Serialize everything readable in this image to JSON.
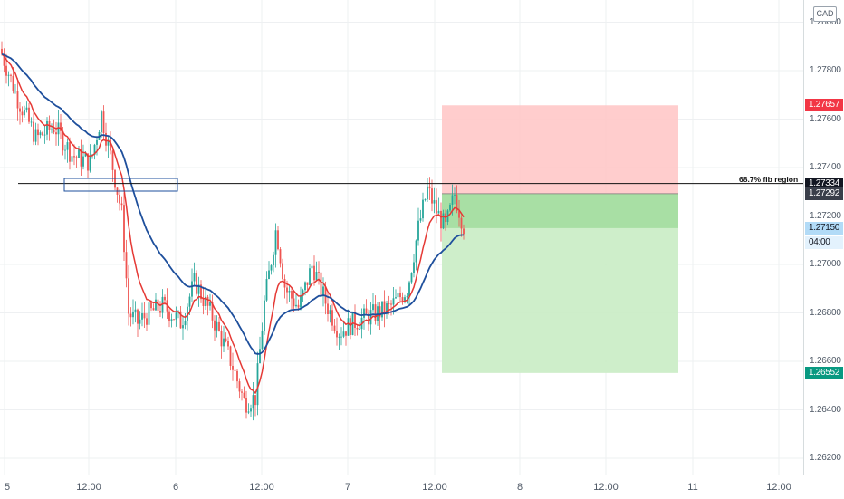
{
  "currency": "CAD",
  "annotation": {
    "fib_label": "68.7% fib region"
  },
  "price_axis": {
    "ticks": [
      "1.28000",
      "1.27800",
      "1.27600",
      "1.27400",
      "1.27200",
      "1.27000",
      "1.26800",
      "1.26600",
      "1.26400",
      "1.26200"
    ],
    "labels": {
      "stop": "1.27657",
      "fib_level": "1.27334",
      "entry": "1.27292",
      "current": "1.27150",
      "countdown": "04:00",
      "target": "1.26552"
    }
  },
  "time_axis": {
    "ticks": [
      "5",
      "12:00",
      "6",
      "12:00",
      "7",
      "12:00",
      "8",
      "12:00",
      "11",
      "12:00"
    ]
  },
  "colors": {
    "ema_fast": "#e53935",
    "ema_slow": "#1e4f9c",
    "stop_label_bg": "#f23645",
    "target_label_bg": "#089981",
    "current_label_bg": "#b2dbf7",
    "risk_fill": "#ffc8c8",
    "reward_fill": "#c9ecc4"
  },
  "chart_data": {
    "type": "line",
    "title": "",
    "xlabel": "",
    "ylabel": "",
    "x": [
      "5 00:00",
      "5 04:00",
      "5 08:00",
      "5 12:00",
      "5 16:00",
      "5 20:00",
      "6 00:00",
      "6 04:00",
      "6 08:00",
      "6 12:00",
      "6 16:00",
      "6 20:00",
      "7 00:00",
      "7 04:00",
      "7 08:00",
      "7 12:00",
      "7 14:00"
    ],
    "series": [
      {
        "values": [
          1.2787,
          1.2765,
          1.2754,
          1.275,
          1.2745,
          1.269,
          1.269,
          1.2694,
          1.2652,
          1.2712,
          1.2686,
          1.268,
          1.2683,
          1.2687,
          1.2706,
          1.2728,
          1.2717
        ]
      },
      {
        "values": [
          1.2785,
          1.2768,
          1.276,
          1.2755,
          1.2745,
          1.27,
          1.2686,
          1.2684,
          1.2664,
          1.269,
          1.269,
          1.2682,
          1.2683,
          1.2682,
          1.269,
          1.2705,
          1.2715
        ]
      }
    ],
    "ylim": [
      1.261,
      1.281
    ],
    "grid": true,
    "levels": {
      "fib": 1.27334,
      "stop": 1.27657,
      "entry": 1.27292,
      "target": 1.26552,
      "current": 1.2715
    }
  }
}
